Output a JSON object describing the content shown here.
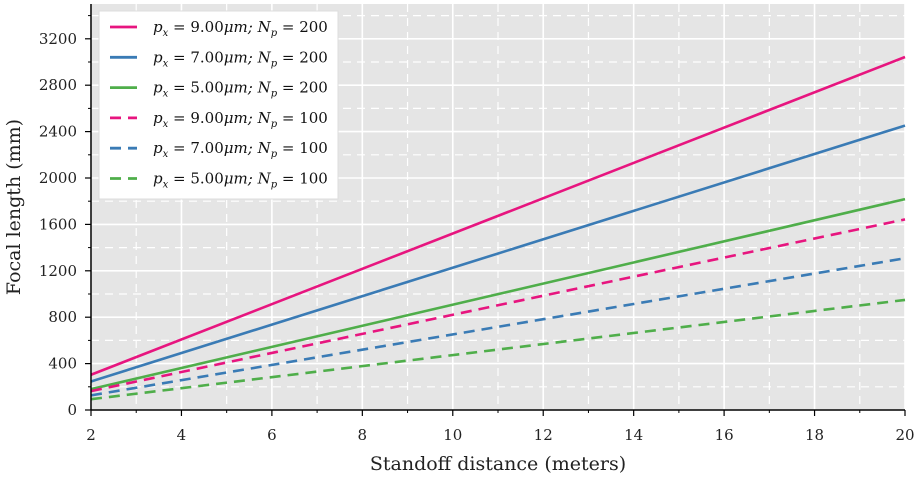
{
  "chart_data": {
    "type": "line",
    "title": "",
    "xlabel": "Standoff distance (meters)",
    "ylabel": "Focal length (mm)",
    "xlim": [
      2,
      20
    ],
    "ylim": [
      0,
      3500
    ],
    "xticks": [
      "2",
      "4",
      "6",
      "8",
      "10",
      "12",
      "14",
      "16",
      "18",
      "20"
    ],
    "yticks": [
      "0",
      "400",
      "800",
      "1200",
      "1600",
      "2000",
      "2400",
      "2800",
      "3200"
    ],
    "grid": true,
    "legend_position": "top-left",
    "series": [
      {
        "name": "p_x = 9.00μm; N_p = 200",
        "color": "#e7157f",
        "dash": "solid",
        "x": [
          2,
          20
        ],
        "y": [
          304,
          3043
        ]
      },
      {
        "name": "p_x = 7.00μm; N_p = 200",
        "color": "#3a7bb5",
        "dash": "solid",
        "x": [
          2,
          20
        ],
        "y": [
          246,
          2452
        ]
      },
      {
        "name": "p_x = 5.00μm; N_p = 200",
        "color": "#4fae4a",
        "dash": "solid",
        "x": [
          2,
          20
        ],
        "y": [
          180,
          1818
        ]
      },
      {
        "name": "p_x = 9.00μm; N_p = 100",
        "color": "#e7157f",
        "dash": "dashed",
        "x": [
          2,
          20
        ],
        "y": [
          163,
          1643
        ]
      },
      {
        "name": "p_x = 7.00μm; N_p = 100",
        "color": "#3a7bb5",
        "dash": "dashed",
        "x": [
          2,
          20
        ],
        "y": [
          126,
          1308
        ]
      },
      {
        "name": "p_x = 5.00μm; N_p = 100",
        "color": "#4fae4a",
        "dash": "dashed",
        "x": [
          2,
          20
        ],
        "y": [
          93,
          949
        ]
      }
    ],
    "legend": [
      {
        "px": "9.00",
        "unit": "μm",
        "np": "200"
      },
      {
        "px": "7.00",
        "unit": "μm",
        "np": "200"
      },
      {
        "px": "5.00",
        "unit": "μm",
        "np": "200"
      },
      {
        "px": "9.00",
        "unit": "μm",
        "np": "100"
      },
      {
        "px": "7.00",
        "unit": "μm",
        "np": "100"
      },
      {
        "px": "5.00",
        "unit": "μm",
        "np": "100"
      }
    ]
  }
}
